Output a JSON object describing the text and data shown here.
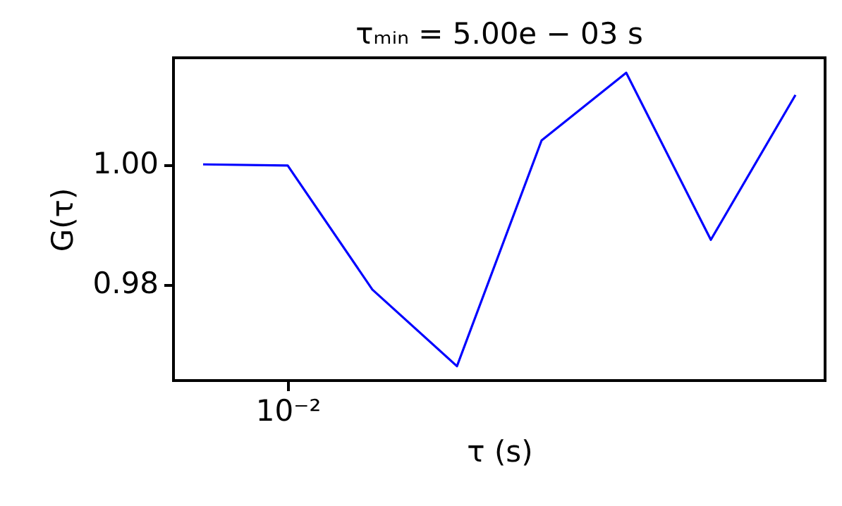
{
  "chart_data": {
    "type": "line",
    "title": "τₘᵢₙ = 5.00e − 03 s",
    "xlabel": "τ (s)",
    "ylabel": "G(τ)",
    "categories": [
      null,
      "10⁻²",
      null,
      null,
      null,
      null,
      null,
      null
    ],
    "series": [
      {
        "color": "#0000ff",
        "values": [
          1.0,
          0.9998,
          0.9791,
          0.9663,
          1.004,
          1.0153,
          0.9874,
          1.0116
        ]
      }
    ],
    "ylim": [
      0.9639,
      1.0178
    ],
    "yticks": [
      {
        "value": 0.98,
        "label": "0.98"
      },
      {
        "value": 1.0,
        "label": "1.00"
      }
    ],
    "grid": false,
    "marker": "none",
    "line_style": "solid"
  }
}
